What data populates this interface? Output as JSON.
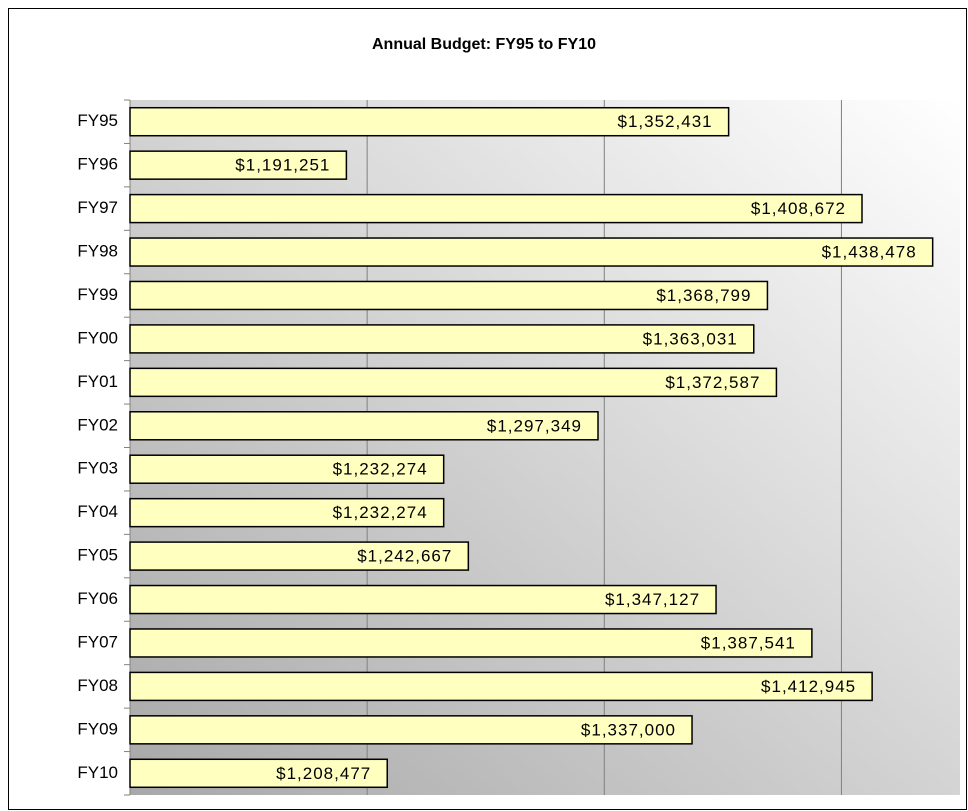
{
  "chart_data": {
    "type": "barh",
    "title": "Annual Budget: FY95 to FY10",
    "categories": [
      "FY95",
      "FY96",
      "FY97",
      "FY98",
      "FY99",
      "FY00",
      "FY01",
      "FY02",
      "FY03",
      "FY04",
      "FY05",
      "FY06",
      "FY07",
      "FY08",
      "FY09",
      "FY10"
    ],
    "values": [
      1352431,
      1191251,
      1408672,
      1438478,
      1368799,
      1363031,
      1372587,
      1297349,
      1232274,
      1232274,
      1242667,
      1347127,
      1387541,
      1412945,
      1337000,
      1208477
    ],
    "value_labels": [
      "$1,352,431",
      "$1,191,251",
      "$1,408,672",
      "$1,438,478",
      "$1,368,799",
      "$1,363,031",
      "$1,372,587",
      "$1,297,349",
      "$1,232,274",
      "$1,232,274",
      "$1,242,667",
      "$1,347,127",
      "$1,387,541",
      "$1,412,945",
      "$1,337,000",
      "$1,208,477"
    ],
    "color": "#ffffc0",
    "xlim": [
      1100000,
      1450000
    ],
    "xticks": [
      1200000,
      1300000,
      1400000
    ],
    "grid": true
  }
}
